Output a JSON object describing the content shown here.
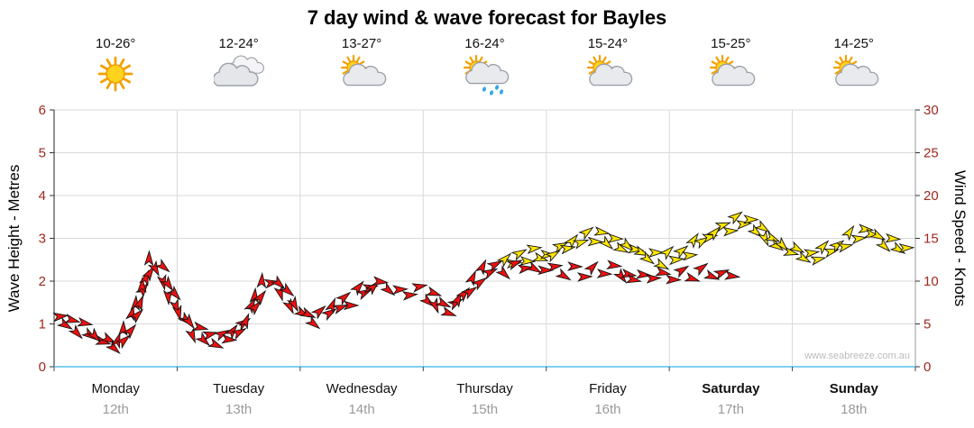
{
  "colors": {
    "recent": "#ee1111",
    "forecast": "#ffe600",
    "tick_label": "#a02820",
    "grid": "#d9d9d9",
    "axis_left": "#222222",
    "axis_right": "#999999",
    "axis_bottom": "#7fd0ee",
    "day_label": "#111111",
    "date_label": "#9a9a9a",
    "watermark": "#bbbbbb"
  },
  "forecast_days": [
    {
      "temp": "10-26°",
      "icon": "sunny"
    },
    {
      "temp": "12-24°",
      "icon": "cloudy"
    },
    {
      "temp": "13-27°",
      "icon": "partly-cloudy"
    },
    {
      "temp": "16-24°",
      "icon": "rain-showers"
    },
    {
      "temp": "15-24°",
      "icon": "partly-cloudy"
    },
    {
      "temp": "15-25°",
      "icon": "partly-cloudy"
    },
    {
      "temp": "14-25°",
      "icon": "partly-cloudy"
    }
  ],
  "chart_data": {
    "type": "line",
    "title": "7 day wind & wave forecast for Bayles",
    "ylabel_left": "Wave Height - Metres",
    "ylabel_right": "Wind Speed - Knots",
    "ylim_wave_metres": [
      0,
      6
    ],
    "ylim_wind_knots": [
      0,
      30
    ],
    "y_ticks_left": [
      0,
      1,
      2,
      3,
      4,
      5,
      6
    ],
    "y_ticks_right": [
      0,
      5,
      10,
      15,
      20,
      25,
      30
    ],
    "grid": true,
    "x_unit": "days",
    "watermark": "www.seabreeze.com.au",
    "days": [
      {
        "name": "Monday",
        "date": "12th",
        "bold": false
      },
      {
        "name": "Tuesday",
        "date": "13th",
        "bold": false
      },
      {
        "name": "Wednesday",
        "date": "14th",
        "bold": false
      },
      {
        "name": "Thursday",
        "date": "15th",
        "bold": false
      },
      {
        "name": "Friday",
        "date": "16th",
        "bold": false
      },
      {
        "name": "Saturday",
        "date": "17th",
        "bold": true
      },
      {
        "name": "Sunday",
        "date": "18th",
        "bold": true
      }
    ],
    "series": [
      {
        "name": "wind-speed-forecast-yellow",
        "color_key": "forecast",
        "unit": "knots",
        "points": [
          [
            3.63,
            12.1
          ],
          [
            3.74,
            12.6
          ],
          [
            3.85,
            13.2
          ],
          [
            3.96,
            12.9
          ],
          [
            4.07,
            13.4
          ],
          [
            4.18,
            14.2
          ],
          [
            4.29,
            15.0
          ],
          [
            4.4,
            15.3
          ],
          [
            4.51,
            14.8
          ],
          [
            4.62,
            14.2
          ],
          [
            4.73,
            13.6
          ],
          [
            4.84,
            13.0
          ],
          [
            4.95,
            12.4
          ],
          [
            5.06,
            12.9
          ],
          [
            5.17,
            13.8
          ],
          [
            5.28,
            15.0
          ],
          [
            5.39,
            16.0
          ],
          [
            5.5,
            16.6
          ],
          [
            5.61,
            17.0
          ],
          [
            5.72,
            16.2
          ],
          [
            5.83,
            14.8
          ],
          [
            5.94,
            14.0
          ],
          [
            6.05,
            13.2
          ],
          [
            6.16,
            12.8
          ],
          [
            6.27,
            13.4
          ],
          [
            6.38,
            14.2
          ],
          [
            6.49,
            15.4
          ],
          [
            6.6,
            15.8
          ],
          [
            6.71,
            15.0
          ],
          [
            6.82,
            14.2
          ],
          [
            6.93,
            13.5
          ]
        ]
      },
      {
        "name": "wind-speed-recent-red",
        "color_key": "recent",
        "unit": "knots",
        "points": [
          [
            0.0,
            5.8
          ],
          [
            0.1,
            5.3
          ],
          [
            0.2,
            4.7
          ],
          [
            0.3,
            3.9
          ],
          [
            0.4,
            3.1
          ],
          [
            0.5,
            2.4
          ],
          [
            0.56,
            3.4
          ],
          [
            0.62,
            5.0
          ],
          [
            0.68,
            7.2
          ],
          [
            0.73,
            9.7
          ],
          [
            0.77,
            11.6
          ],
          [
            0.8,
            12.6
          ],
          [
            0.85,
            11.6
          ],
          [
            0.9,
            10.0
          ],
          [
            0.95,
            8.6
          ],
          [
            1.0,
            7.0
          ],
          [
            1.07,
            5.5
          ],
          [
            1.14,
            4.2
          ],
          [
            1.22,
            3.4
          ],
          [
            1.32,
            3.1
          ],
          [
            1.42,
            3.6
          ],
          [
            1.5,
            4.4
          ],
          [
            1.58,
            6.0
          ],
          [
            1.65,
            8.0
          ],
          [
            1.72,
            9.8
          ],
          [
            1.79,
            10.2
          ],
          [
            1.86,
            9.0
          ],
          [
            1.93,
            7.4
          ],
          [
            2.02,
            6.2
          ],
          [
            2.12,
            5.6
          ],
          [
            2.2,
            6.0
          ],
          [
            2.28,
            7.0
          ],
          [
            2.36,
            7.7
          ],
          [
            2.44,
            8.2
          ],
          [
            2.52,
            8.9
          ],
          [
            2.6,
            9.6
          ],
          [
            2.68,
            9.5
          ],
          [
            2.76,
            9.0
          ],
          [
            2.84,
            8.6
          ],
          [
            2.92,
            8.9
          ],
          [
            3.0,
            8.6
          ],
          [
            3.08,
            8.0
          ],
          [
            3.16,
            6.9
          ],
          [
            3.22,
            6.7
          ],
          [
            3.3,
            8.0
          ],
          [
            3.38,
            9.4
          ],
          [
            3.46,
            10.5
          ],
          [
            3.54,
            11.4
          ],
          [
            3.62,
            11.8
          ],
          [
            3.7,
            11.4
          ],
          [
            3.78,
            11.5
          ],
          [
            3.86,
            11.8
          ],
          [
            3.94,
            11.6
          ],
          [
            4.02,
            11.3
          ],
          [
            4.1,
            11.5
          ],
          [
            4.18,
            11.2
          ],
          [
            4.26,
            10.7
          ],
          [
            4.34,
            10.9
          ],
          [
            4.42,
            11.3
          ],
          [
            4.5,
            11.5
          ],
          [
            4.58,
            11.2
          ],
          [
            4.66,
            10.6
          ],
          [
            4.74,
            10.5
          ],
          [
            4.82,
            10.8
          ],
          [
            4.9,
            10.6
          ],
          [
            4.98,
            10.4
          ],
          [
            5.06,
            10.7
          ],
          [
            5.14,
            10.9
          ],
          [
            5.22,
            10.7
          ],
          [
            5.3,
            10.9
          ],
          [
            5.38,
            10.7
          ],
          [
            5.46,
            11.0
          ],
          [
            5.53,
            11.3
          ]
        ]
      }
    ]
  }
}
